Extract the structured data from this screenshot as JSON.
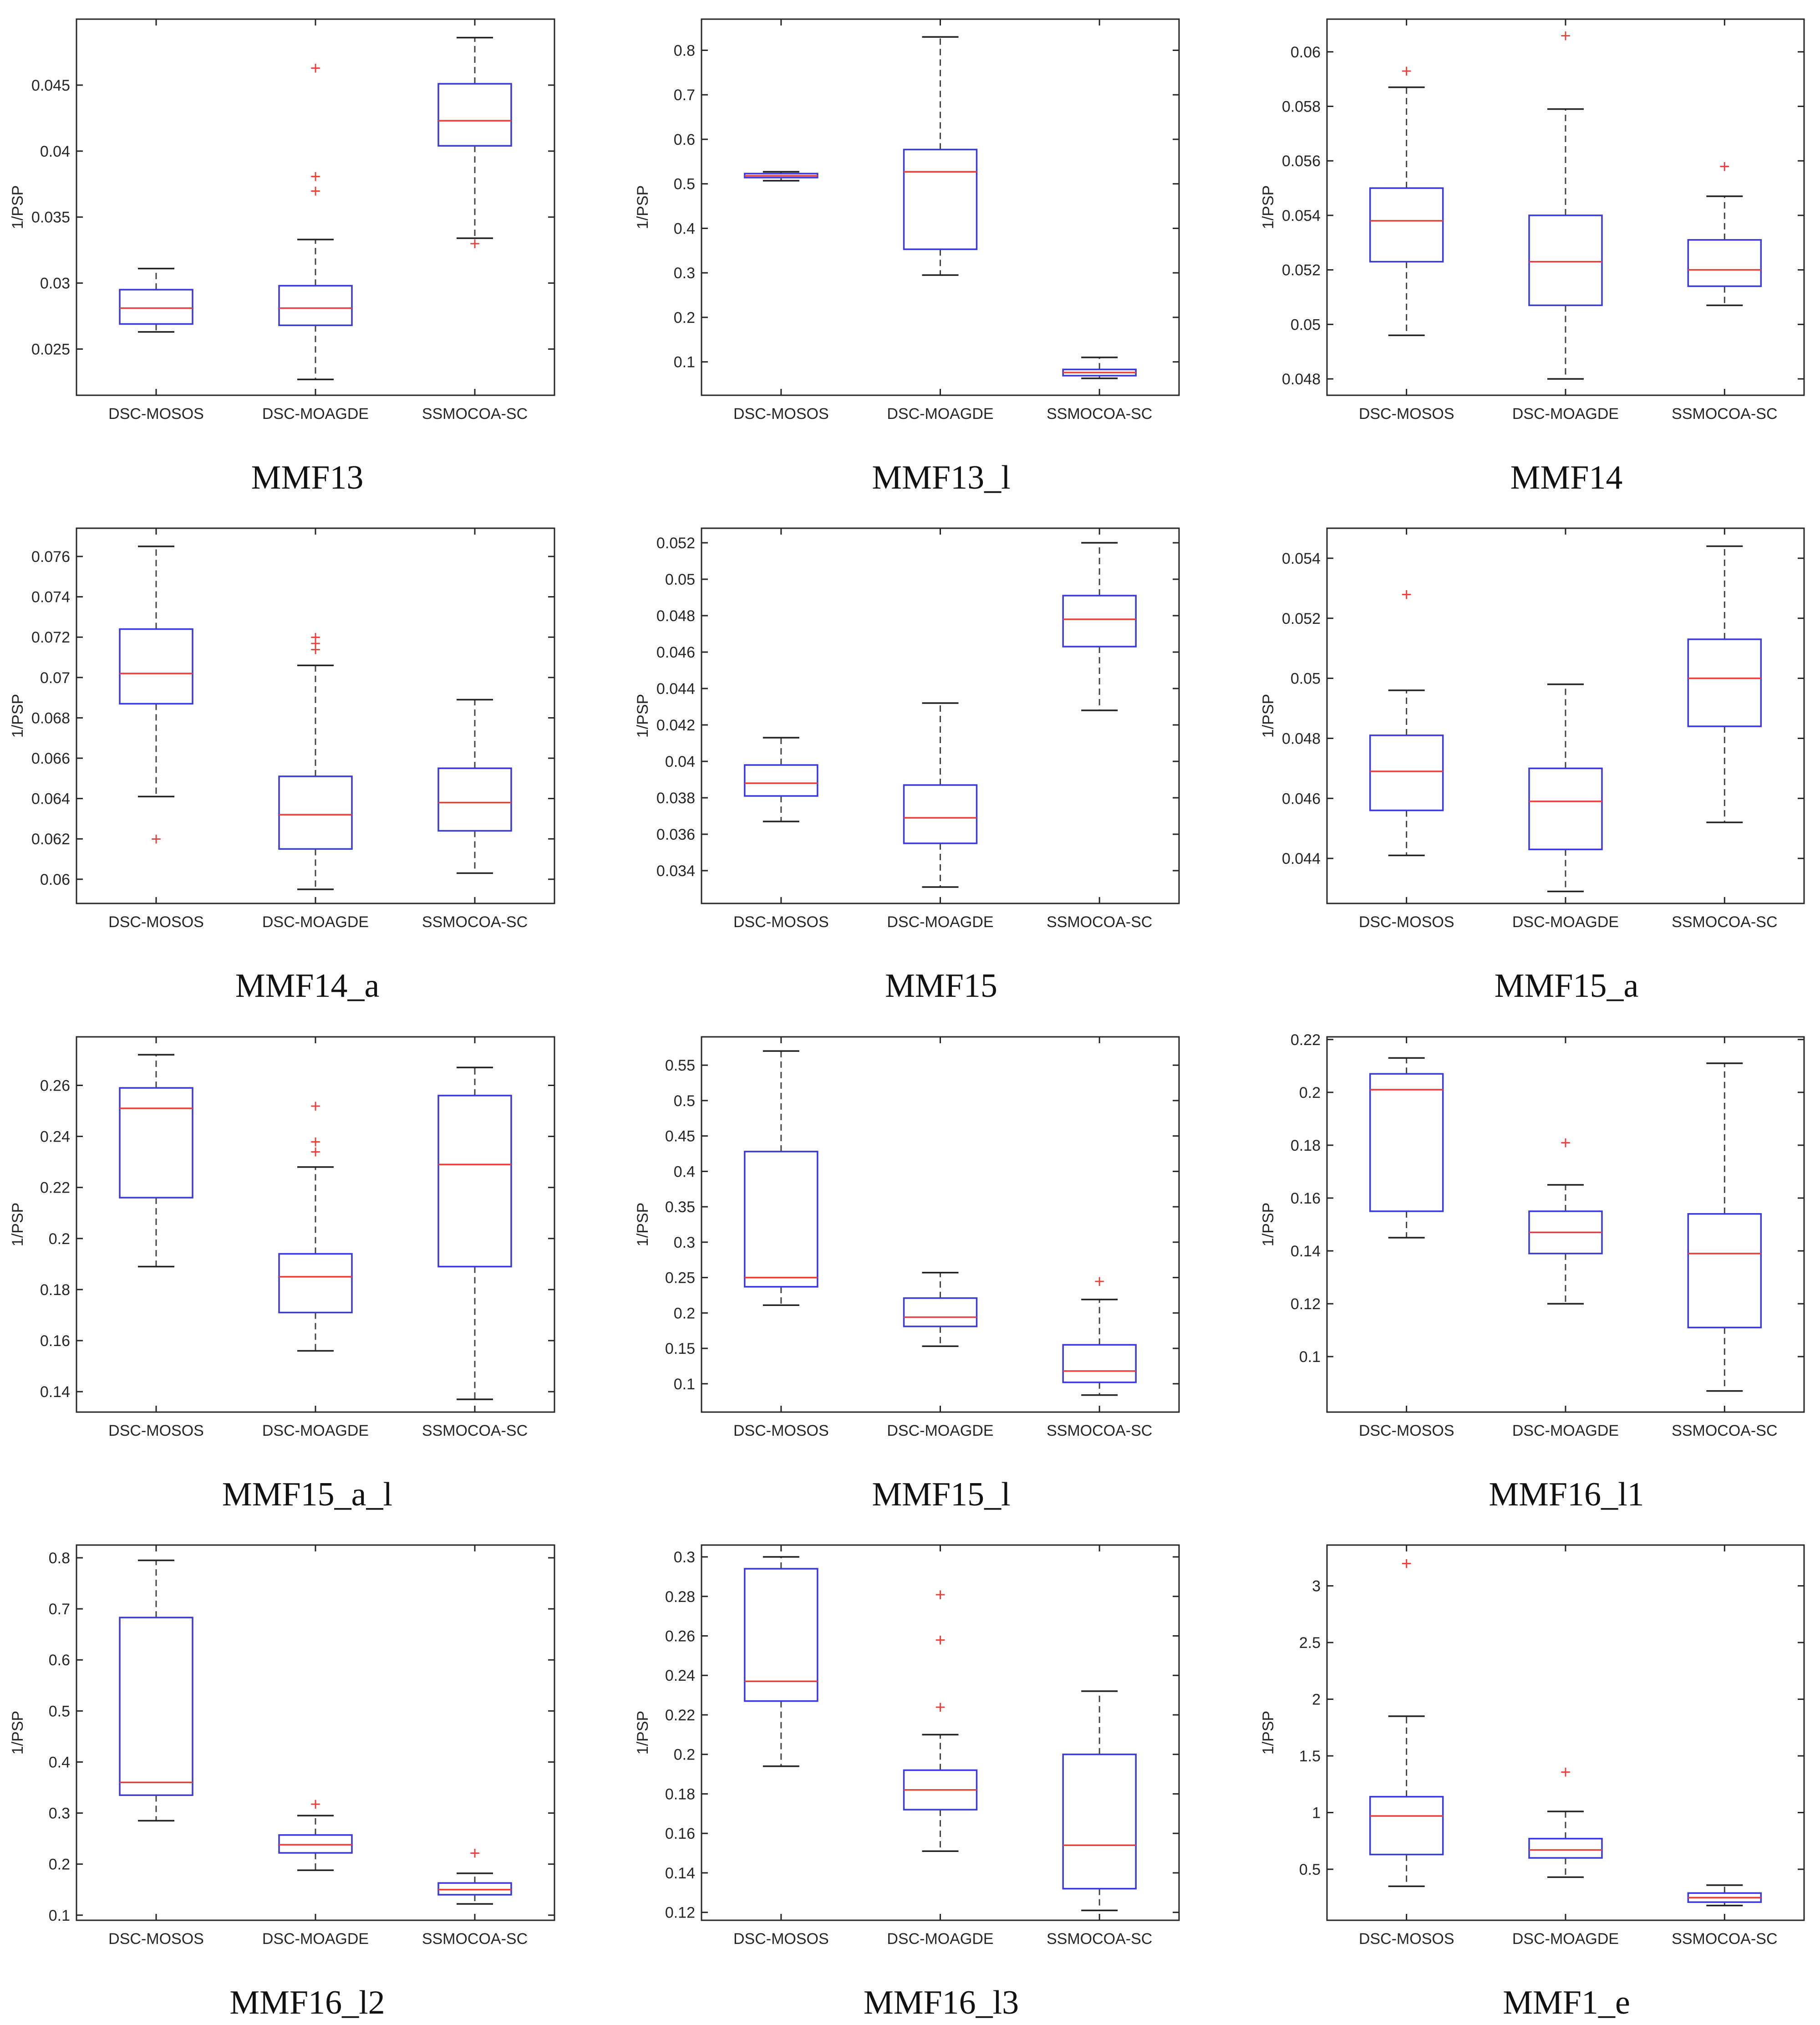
{
  "figure": {
    "colors": {
      "box": "#3a3adc",
      "median": "#e8403a",
      "whisker": "#444444",
      "outlier": "#e8403a",
      "frame": "#262626"
    },
    "outlier_marker": "+"
  },
  "chart_data": [
    {
      "type": "boxplot",
      "title": "MMF13",
      "ylabel": "1/PSP",
      "categories": [
        "DSC-MOSOS",
        "DSC-MOAGDE",
        "SSMOCOA-SC"
      ],
      "ylim": [
        0.0215,
        0.05
      ],
      "yticks": [
        0.025,
        0.03,
        0.035,
        0.04,
        0.045
      ],
      "yticklabels": [
        "0.025",
        "0.03",
        "0.035",
        "0.04",
        "0.045"
      ],
      "boxes": [
        {
          "lower_whisker": 0.0263,
          "q1": 0.0269,
          "median": 0.0281,
          "q3": 0.0295,
          "upper_whisker": 0.0311,
          "outliers": []
        },
        {
          "lower_whisker": 0.0227,
          "q1": 0.0268,
          "median": 0.0281,
          "q3": 0.0298,
          "upper_whisker": 0.0333,
          "outliers": [
            0.037,
            0.0381,
            0.0463
          ]
        },
        {
          "lower_whisker": 0.0334,
          "q1": 0.0404,
          "median": 0.0423,
          "q3": 0.0451,
          "upper_whisker": 0.0486,
          "outliers": [
            0.033
          ]
        }
      ]
    },
    {
      "type": "boxplot",
      "title": "MMF13_l",
      "ylabel": "1/PSP",
      "categories": [
        "DSC-MOSOS",
        "DSC-MOAGDE",
        "SSMOCOA-SC"
      ],
      "ylim": [
        0.025,
        0.87
      ],
      "yticks": [
        0.1,
        0.2,
        0.3,
        0.4,
        0.5,
        0.6,
        0.7,
        0.8
      ],
      "yticklabels": [
        "0.1",
        "0.2",
        "0.3",
        "0.4",
        "0.5",
        "0.6",
        "0.7",
        "0.8"
      ],
      "boxes": [
        {
          "lower_whisker": 0.507,
          "q1": 0.514,
          "median": 0.518,
          "q3": 0.523,
          "upper_whisker": 0.527,
          "outliers": []
        },
        {
          "lower_whisker": 0.295,
          "q1": 0.353,
          "median": 0.527,
          "q3": 0.577,
          "upper_whisker": 0.83,
          "outliers": []
        },
        {
          "lower_whisker": 0.063,
          "q1": 0.069,
          "median": 0.076,
          "q3": 0.083,
          "upper_whisker": 0.11,
          "outliers": []
        }
      ]
    },
    {
      "type": "boxplot",
      "title": "MMF14",
      "ylabel": "1/PSP",
      "categories": [
        "DSC-MOSOS",
        "DSC-MOAGDE",
        "SSMOCOA-SC"
      ],
      "ylim": [
        0.0474,
        0.0612
      ],
      "yticks": [
        0.048,
        0.05,
        0.052,
        0.054,
        0.056,
        0.058,
        0.06
      ],
      "yticklabels": [
        "0.048",
        "0.05",
        "0.052",
        "0.054",
        "0.056",
        "0.058",
        "0.06"
      ],
      "boxes": [
        {
          "lower_whisker": 0.0496,
          "q1": 0.0523,
          "median": 0.0538,
          "q3": 0.055,
          "upper_whisker": 0.0587,
          "outliers": [
            0.0593
          ]
        },
        {
          "lower_whisker": 0.048,
          "q1": 0.0507,
          "median": 0.0523,
          "q3": 0.054,
          "upper_whisker": 0.0579,
          "outliers": [
            0.0606
          ]
        },
        {
          "lower_whisker": 0.0507,
          "q1": 0.0514,
          "median": 0.052,
          "q3": 0.0531,
          "upper_whisker": 0.0547,
          "outliers": [
            0.0558
          ]
        }
      ]
    },
    {
      "type": "boxplot",
      "title": "MMF14_a",
      "ylabel": "1/PSP",
      "categories": [
        "DSC-MOSOS",
        "DSC-MOAGDE",
        "SSMOCOA-SC"
      ],
      "ylim": [
        0.0588,
        0.0774
      ],
      "yticks": [
        0.06,
        0.062,
        0.064,
        0.066,
        0.068,
        0.07,
        0.072,
        0.074,
        0.076
      ],
      "yticklabels": [
        "0.06",
        "0.062",
        "0.064",
        "0.066",
        "0.068",
        "0.07",
        "0.072",
        "0.074",
        "0.076"
      ],
      "boxes": [
        {
          "lower_whisker": 0.0641,
          "q1": 0.0687,
          "median": 0.0702,
          "q3": 0.0724,
          "upper_whisker": 0.0765,
          "outliers": [
            0.062
          ]
        },
        {
          "lower_whisker": 0.0595,
          "q1": 0.0615,
          "median": 0.0632,
          "q3": 0.0651,
          "upper_whisker": 0.0706,
          "outliers": [
            0.0714,
            0.0717,
            0.072
          ]
        },
        {
          "lower_whisker": 0.0603,
          "q1": 0.0624,
          "median": 0.0638,
          "q3": 0.0655,
          "upper_whisker": 0.0689,
          "outliers": []
        }
      ]
    },
    {
      "type": "boxplot",
      "title": "MMF15",
      "ylabel": "1/PSP",
      "categories": [
        "DSC-MOSOS",
        "DSC-MOAGDE",
        "SSMOCOA-SC"
      ],
      "ylim": [
        0.0322,
        0.0528
      ],
      "yticks": [
        0.034,
        0.036,
        0.038,
        0.04,
        0.042,
        0.044,
        0.046,
        0.048,
        0.05,
        0.052
      ],
      "yticklabels": [
        "0.034",
        "0.036",
        "0.038",
        "0.04",
        "0.042",
        "0.044",
        "0.046",
        "0.048",
        "0.05",
        "0.052"
      ],
      "boxes": [
        {
          "lower_whisker": 0.0367,
          "q1": 0.0381,
          "median": 0.0388,
          "q3": 0.0398,
          "upper_whisker": 0.0413,
          "outliers": []
        },
        {
          "lower_whisker": 0.0331,
          "q1": 0.0355,
          "median": 0.0369,
          "q3": 0.0387,
          "upper_whisker": 0.0432,
          "outliers": []
        },
        {
          "lower_whisker": 0.0428,
          "q1": 0.0463,
          "median": 0.0478,
          "q3": 0.0491,
          "upper_whisker": 0.052,
          "outliers": []
        }
      ]
    },
    {
      "type": "boxplot",
      "title": "MMF15_a",
      "ylabel": "1/PSP",
      "categories": [
        "DSC-MOSOS",
        "DSC-MOAGDE",
        "SSMOCOA-SC"
      ],
      "ylim": [
        0.0425,
        0.055
      ],
      "yticks": [
        0.044,
        0.046,
        0.048,
        0.05,
        0.052,
        0.054
      ],
      "yticklabels": [
        "0.044",
        "0.046",
        "0.048",
        "0.05",
        "0.052",
        "0.054"
      ],
      "boxes": [
        {
          "lower_whisker": 0.0441,
          "q1": 0.0456,
          "median": 0.0469,
          "q3": 0.0481,
          "upper_whisker": 0.0496,
          "outliers": [
            0.0528
          ]
        },
        {
          "lower_whisker": 0.0429,
          "q1": 0.0443,
          "median": 0.0459,
          "q3": 0.047,
          "upper_whisker": 0.0498,
          "outliers": []
        },
        {
          "lower_whisker": 0.0452,
          "q1": 0.0484,
          "median": 0.05,
          "q3": 0.0513,
          "upper_whisker": 0.0544,
          "outliers": []
        }
      ]
    },
    {
      "type": "boxplot",
      "title": "MMF15_a_l",
      "ylabel": "1/PSP",
      "categories": [
        "DSC-MOSOS",
        "DSC-MOAGDE",
        "SSMOCOA-SC"
      ],
      "ylim": [
        0.132,
        0.279
      ],
      "yticks": [
        0.14,
        0.16,
        0.18,
        0.2,
        0.22,
        0.24,
        0.26
      ],
      "yticklabels": [
        "0.14",
        "0.16",
        "0.18",
        "0.2",
        "0.22",
        "0.24",
        "0.26"
      ],
      "boxes": [
        {
          "lower_whisker": 0.189,
          "q1": 0.216,
          "median": 0.251,
          "q3": 0.259,
          "upper_whisker": 0.272,
          "outliers": []
        },
        {
          "lower_whisker": 0.156,
          "q1": 0.171,
          "median": 0.185,
          "q3": 0.194,
          "upper_whisker": 0.228,
          "outliers": [
            0.234,
            0.238,
            0.252
          ]
        },
        {
          "lower_whisker": 0.137,
          "q1": 0.189,
          "median": 0.229,
          "q3": 0.256,
          "upper_whisker": 0.267,
          "outliers": []
        }
      ]
    },
    {
      "type": "boxplot",
      "title": "MMF15_l",
      "ylabel": "1/PSP",
      "categories": [
        "DSC-MOSOS",
        "DSC-MOAGDE",
        "SSMOCOA-SC"
      ],
      "ylim": [
        0.06,
        0.59
      ],
      "yticks": [
        0.1,
        0.15,
        0.2,
        0.25,
        0.3,
        0.35,
        0.4,
        0.45,
        0.5,
        0.55
      ],
      "yticklabels": [
        "0.1",
        "0.15",
        "0.2",
        "0.25",
        "0.3",
        "0.35",
        "0.4",
        "0.45",
        "0.5",
        "0.55"
      ],
      "boxes": [
        {
          "lower_whisker": 0.211,
          "q1": 0.237,
          "median": 0.25,
          "q3": 0.428,
          "upper_whisker": 0.57,
          "outliers": []
        },
        {
          "lower_whisker": 0.153,
          "q1": 0.181,
          "median": 0.194,
          "q3": 0.221,
          "upper_whisker": 0.257,
          "outliers": []
        },
        {
          "lower_whisker": 0.084,
          "q1": 0.102,
          "median": 0.118,
          "q3": 0.155,
          "upper_whisker": 0.219,
          "outliers": [
            0.245
          ]
        }
      ]
    },
    {
      "type": "boxplot",
      "title": "MMF16_l1",
      "ylabel": "1/PSP",
      "categories": [
        "DSC-MOSOS",
        "DSC-MOAGDE",
        "SSMOCOA-SC"
      ],
      "ylim": [
        0.079,
        0.221
      ],
      "yticks": [
        0.1,
        0.12,
        0.14,
        0.16,
        0.18,
        0.2,
        0.22
      ],
      "yticklabels": [
        "0.1",
        "0.12",
        "0.14",
        "0.16",
        "0.18",
        "0.2",
        "0.22"
      ],
      "boxes": [
        {
          "lower_whisker": 0.145,
          "q1": 0.155,
          "median": 0.201,
          "q3": 0.207,
          "upper_whisker": 0.213,
          "outliers": []
        },
        {
          "lower_whisker": 0.12,
          "q1": 0.139,
          "median": 0.147,
          "q3": 0.155,
          "upper_whisker": 0.165,
          "outliers": [
            0.181
          ]
        },
        {
          "lower_whisker": 0.087,
          "q1": 0.111,
          "median": 0.139,
          "q3": 0.154,
          "upper_whisker": 0.211,
          "outliers": []
        }
      ]
    },
    {
      "type": "boxplot",
      "title": "MMF16_l2",
      "ylabel": "1/PSP",
      "categories": [
        "DSC-MOSOS",
        "DSC-MOAGDE",
        "SSMOCOA-SC"
      ],
      "ylim": [
        0.09,
        0.825
      ],
      "yticks": [
        0.1,
        0.2,
        0.3,
        0.4,
        0.5,
        0.6,
        0.7,
        0.8
      ],
      "yticklabels": [
        "0.1",
        "0.2",
        "0.3",
        "0.4",
        "0.5",
        "0.6",
        "0.7",
        "0.8"
      ],
      "boxes": [
        {
          "lower_whisker": 0.285,
          "q1": 0.335,
          "median": 0.36,
          "q3": 0.683,
          "upper_whisker": 0.795,
          "outliers": []
        },
        {
          "lower_whisker": 0.188,
          "q1": 0.222,
          "median": 0.238,
          "q3": 0.257,
          "upper_whisker": 0.295,
          "outliers": [
            0.318
          ]
        },
        {
          "lower_whisker": 0.122,
          "q1": 0.14,
          "median": 0.15,
          "q3": 0.163,
          "upper_whisker": 0.182,
          "outliers": [
            0.222
          ]
        }
      ]
    },
    {
      "type": "boxplot",
      "title": "MMF16_l3",
      "ylabel": "1/PSP",
      "categories": [
        "DSC-MOSOS",
        "DSC-MOAGDE",
        "SSMOCOA-SC"
      ],
      "ylim": [
        0.116,
        0.306
      ],
      "yticks": [
        0.12,
        0.14,
        0.16,
        0.18,
        0.2,
        0.22,
        0.24,
        0.26,
        0.28,
        0.3
      ],
      "yticklabels": [
        "0.12",
        "0.14",
        "0.16",
        "0.18",
        "0.2",
        "0.22",
        "0.24",
        "0.26",
        "0.28",
        "0.3"
      ],
      "boxes": [
        {
          "lower_whisker": 0.194,
          "q1": 0.227,
          "median": 0.237,
          "q3": 0.294,
          "upper_whisker": 0.3,
          "outliers": []
        },
        {
          "lower_whisker": 0.151,
          "q1": 0.172,
          "median": 0.182,
          "q3": 0.192,
          "upper_whisker": 0.21,
          "outliers": [
            0.224,
            0.258,
            0.281
          ]
        },
        {
          "lower_whisker": 0.121,
          "q1": 0.132,
          "median": 0.154,
          "q3": 0.2,
          "upper_whisker": 0.232,
          "outliers": []
        }
      ]
    },
    {
      "type": "boxplot",
      "title": "MMF1_e",
      "ylabel": "1/PSP",
      "categories": [
        "DSC-MOSOS",
        "DSC-MOAGDE",
        "SSMOCOA-SC"
      ],
      "ylim": [
        0.05,
        3.36
      ],
      "yticks": [
        0.5,
        1,
        1.5,
        2,
        2.5,
        3
      ],
      "yticklabels": [
        "0.5",
        "1",
        "1.5",
        "2",
        "2.5",
        "3"
      ],
      "boxes": [
        {
          "lower_whisker": 0.35,
          "q1": 0.63,
          "median": 0.97,
          "q3": 1.14,
          "upper_whisker": 1.85,
          "outliers": [
            3.2
          ]
        },
        {
          "lower_whisker": 0.43,
          "q1": 0.6,
          "median": 0.67,
          "q3": 0.77,
          "upper_whisker": 1.01,
          "outliers": [
            1.36
          ]
        },
        {
          "lower_whisker": 0.18,
          "q1": 0.21,
          "median": 0.25,
          "q3": 0.29,
          "upper_whisker": 0.36,
          "outliers": []
        }
      ]
    }
  ]
}
